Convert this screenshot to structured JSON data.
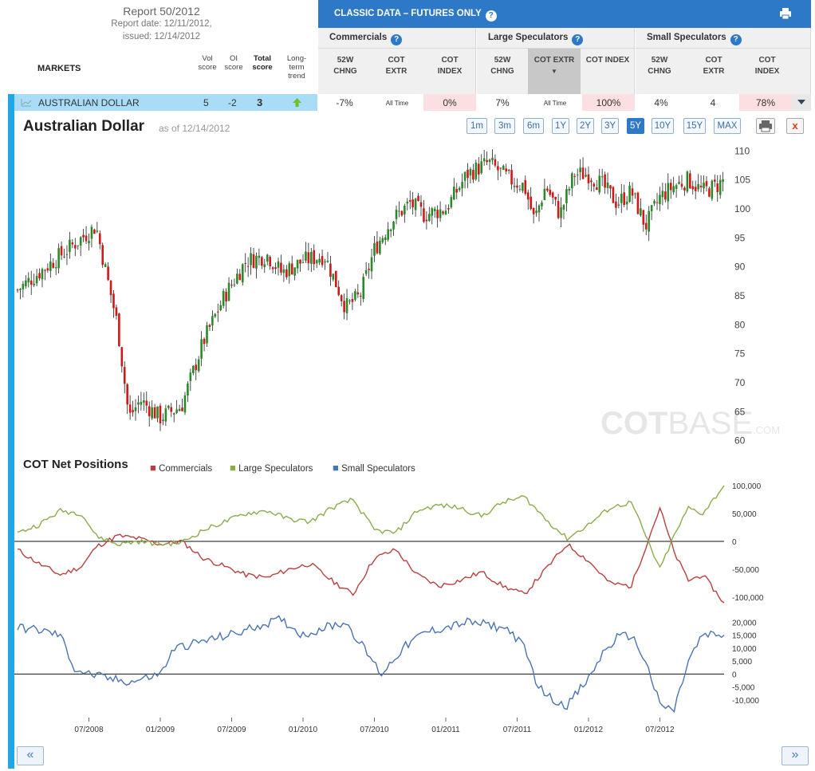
{
  "report": {
    "title": "Report 50/2012",
    "report_date": "Report date: 12/11/2012,",
    "issued": "issued: 12/14/2012"
  },
  "markets_header": "MARKETS",
  "score_headers": [
    "Vol score",
    "OI score",
    "Total score",
    "Long-term trend"
  ],
  "classic": {
    "title": "CLASSIC DATA – FUTURES ONLY",
    "groups": [
      {
        "name": "Commercials",
        "cols": [
          "52W CHNG",
          "COT EXTR",
          "COT INDEX"
        ]
      },
      {
        "name": "Large Speculators",
        "cols": [
          "52W CHNG",
          "COT EXTR",
          "COT INDEX"
        ]
      },
      {
        "name": "Small Speculators",
        "cols": [
          "52W CHNG",
          "COT EXTR",
          "COT INDEX"
        ]
      }
    ]
  },
  "market_row": {
    "name": "AUSTRALIAN DOLLAR",
    "vol": "5",
    "oi": "-2",
    "total": "3",
    "cells": [
      "-7%",
      "All Time",
      "0%",
      "7%",
      "All Time",
      "100%",
      "4%",
      "4",
      "78%"
    ]
  },
  "chart_header": {
    "title": "Australian Dollar",
    "as_of": "as of 12/14/2012",
    "ranges": [
      "1m",
      "3m",
      "6m",
      "1Y",
      "2Y",
      "3Y",
      "5Y",
      "10Y",
      "15Y",
      "MAX"
    ],
    "active_range": "5Y",
    "close_label": "x"
  },
  "watermark": {
    "bold": "COT",
    "light": "BASE",
    "suffix": ".COM"
  },
  "cot": {
    "title": "COT Net Positions",
    "legend": [
      "Commercials",
      "Large Speculators",
      "Small Speculators"
    ]
  },
  "nav": {
    "prev": "«",
    "next": "»"
  },
  "colors": {
    "accent": "#1ea8e8",
    "header_blue": "#2e78c8",
    "candle_up": "#2a8a2a",
    "candle_down": "#d01818",
    "commercials": "#b84040",
    "large_spec": "#8aac4a",
    "small_spec": "#4a74b4"
  },
  "chart_data": [
    {
      "type": "line",
      "title": "Australian Dollar",
      "series_type": "candlestick",
      "y_ticks": [
        60,
        65,
        70,
        75,
        80,
        85,
        90,
        95,
        100,
        105,
        110
      ],
      "ylim": [
        59,
        111
      ],
      "x_range": [
        "01/2008",
        "12/2012"
      ],
      "x": [
        2008.0,
        2008.2,
        2008.4,
        2008.55,
        2008.62,
        2008.7,
        2008.78,
        2008.86,
        2009.0,
        2009.15,
        2009.3,
        2009.45,
        2009.6,
        2009.75,
        2009.85,
        2010.0,
        2010.15,
        2010.3,
        2010.4,
        2010.5,
        2010.62,
        2010.75,
        2010.85,
        2011.0,
        2011.15,
        2011.3,
        2011.45,
        2011.55,
        2011.62,
        2011.7,
        2011.8,
        2011.9,
        2012.0,
        2012.1,
        2012.2,
        2012.3,
        2012.4,
        2012.5,
        2012.6,
        2012.7,
        2012.8,
        2012.9,
        2012.95
      ],
      "values": [
        86,
        90,
        94,
        97,
        89,
        80,
        64,
        67,
        64,
        66,
        77,
        85,
        91,
        92,
        89,
        91,
        92,
        83,
        85,
        93,
        98,
        101,
        99,
        100,
        106,
        108,
        105,
        104,
        98,
        104,
        99,
        106,
        106,
        104,
        101,
        103,
        97,
        102,
        104,
        105,
        103,
        104,
        105
      ],
      "data_note": "approximate closes read from chart"
    },
    {
      "type": "line",
      "title": "COT Net Positions",
      "ylim": [
        -110000,
        110000
      ],
      "y_ticks": [
        -100000,
        -50000,
        0,
        50000,
        100000
      ],
      "x": [
        2008.0,
        2008.15,
        2008.3,
        2008.45,
        2008.55,
        2008.7,
        2008.85,
        2009.0,
        2009.15,
        2009.3,
        2009.45,
        2009.6,
        2009.75,
        2009.9,
        2010.05,
        2010.2,
        2010.35,
        2010.5,
        2010.65,
        2010.8,
        2010.95,
        2011.1,
        2011.25,
        2011.4,
        2011.55,
        2011.7,
        2011.85,
        2012.0,
        2012.15,
        2012.3,
        2012.4,
        2012.5,
        2012.6,
        2012.7,
        2012.8,
        2012.95
      ],
      "series": [
        {
          "name": "Commercials",
          "values": [
            -15000,
            -40000,
            -60000,
            -45000,
            -10000,
            10000,
            5000,
            -5000,
            0,
            -30000,
            -45000,
            -60000,
            -65000,
            -50000,
            -40000,
            -70000,
            -95000,
            -30000,
            -15000,
            -60000,
            -80000,
            -70000,
            -55000,
            -80000,
            -95000,
            -50000,
            -5000,
            -35000,
            -75000,
            -80000,
            -10000,
            60000,
            -20000,
            -70000,
            -60000,
            -110000
          ]
        },
        {
          "name": "Large Speculators",
          "values": [
            15000,
            30000,
            55000,
            50000,
            10000,
            -5000,
            0,
            -5000,
            -2000,
            20000,
            35000,
            50000,
            55000,
            40000,
            35000,
            60000,
            75000,
            20000,
            15000,
            55000,
            65000,
            60000,
            45000,
            70000,
            80000,
            40000,
            5000,
            30000,
            60000,
            70000,
            10000,
            -50000,
            10000,
            60000,
            50000,
            100000
          ]
        }
      ]
    },
    {
      "type": "line",
      "title": "Small Speculators",
      "ylim": [
        -15000,
        22000
      ],
      "y_ticks": [
        -10000,
        -5000,
        0,
        5000,
        10000,
        15000,
        20000
      ],
      "x": [
        2008.0,
        2008.15,
        2008.3,
        2008.4,
        2008.5,
        2008.65,
        2008.8,
        2009.0,
        2009.1,
        2009.25,
        2009.4,
        2009.55,
        2009.7,
        2009.85,
        2010.0,
        2010.15,
        2010.3,
        2010.45,
        2010.55,
        2010.7,
        2010.85,
        2011.0,
        2011.15,
        2011.3,
        2011.45,
        2011.55,
        2011.65,
        2011.75,
        2011.85,
        2012.0,
        2012.1,
        2012.2,
        2012.3,
        2012.4,
        2012.5,
        2012.6,
        2012.7,
        2012.8,
        2012.95
      ],
      "series": [
        {
          "name": "Small Speculators",
          "values": [
            18000,
            17000,
            15000,
            2000,
            0,
            -2000,
            -3000,
            0,
            10000,
            12000,
            14000,
            16000,
            19000,
            21000,
            15000,
            18000,
            20000,
            8000,
            0,
            10000,
            16000,
            18000,
            20000,
            19000,
            17000,
            10000,
            -5000,
            -10000,
            -12000,
            -2000,
            8000,
            14000,
            15000,
            5000,
            -12000,
            -14000,
            5000,
            15000,
            15000
          ]
        }
      ]
    }
  ]
}
